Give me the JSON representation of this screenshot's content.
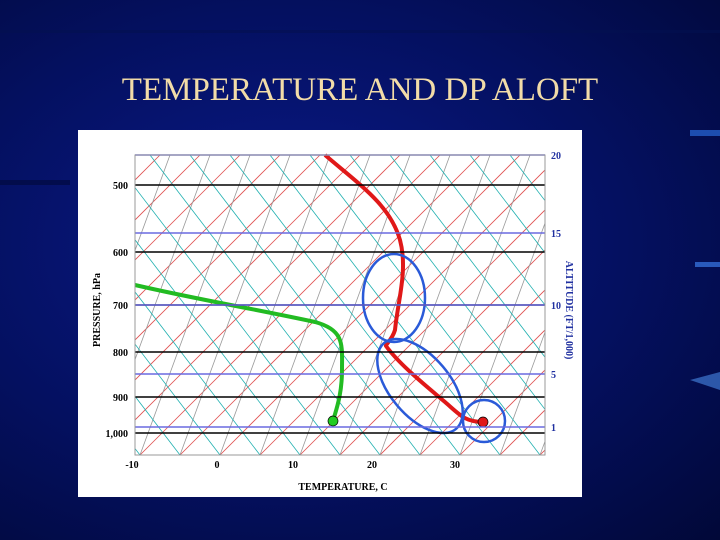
{
  "slide": {
    "title": "TEMPERATURE AND DP ALOFT",
    "diagram": {
      "y_axis_label": "PRESSURE, hPa",
      "x_axis_label": "TEMPERATURE, C",
      "right_axis_label": "ALTITUDE (FT/1,000)",
      "pressure_labels": [
        "500",
        "600",
        "700",
        "800",
        "900",
        "1,000"
      ],
      "temperature_labels": [
        "-10",
        "0",
        "10",
        "20",
        "30"
      ],
      "altitude_labels": [
        "20",
        "15",
        "10",
        "5",
        "1"
      ]
    }
  }
}
